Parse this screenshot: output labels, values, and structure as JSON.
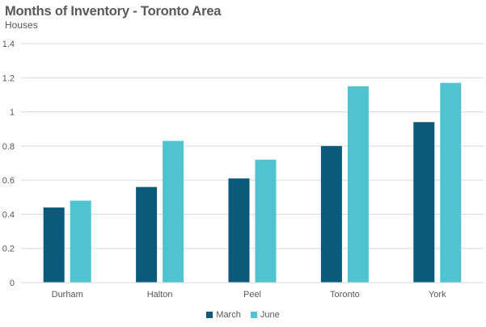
{
  "chart_data": {
    "type": "bar",
    "title": "Months of Inventory - Toronto Area",
    "subtitle": "Houses",
    "xlabel": "",
    "ylabel": "",
    "categories": [
      "Durham",
      "Halton",
      "Peel",
      "Toronto",
      "York"
    ],
    "series": [
      {
        "name": "March",
        "color": "#0a5a7c",
        "values": [
          0.44,
          0.56,
          0.61,
          0.8,
          0.94
        ]
      },
      {
        "name": "June",
        "color": "#4fc3cf",
        "values": [
          0.48,
          0.83,
          0.72,
          1.15,
          1.17
        ]
      }
    ],
    "ylim": [
      0,
      1.4
    ],
    "yticks": [
      "0",
      "0.2",
      "0.4",
      "0.6",
      "0.8",
      "1",
      "1.2",
      "1.4"
    ],
    "grid": true,
    "legend_position": "bottom"
  }
}
